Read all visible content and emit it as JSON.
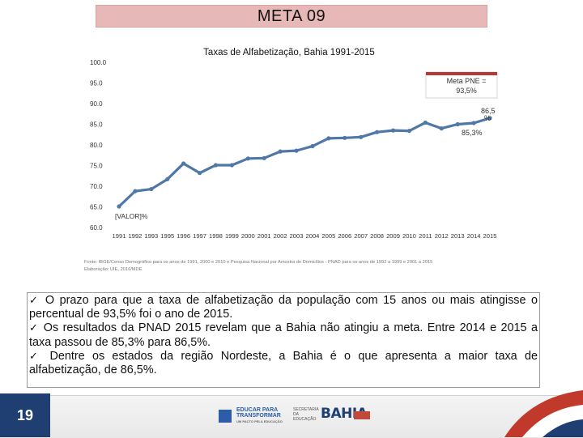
{
  "header": {
    "title": "META 09"
  },
  "chart_data": {
    "type": "line",
    "title": "Taxas de Alfabetização, Bahia 1991-2015",
    "x": [
      "1991",
      "1992",
      "1993",
      "1995",
      "1996",
      "1997",
      "1998",
      "1999",
      "2000",
      "2001",
      "2002",
      "2003",
      "2004",
      "2005",
      "2006",
      "2007",
      "2008",
      "2009",
      "2010",
      "2011",
      "2012",
      "2013",
      "2014",
      "2015"
    ],
    "series": [
      {
        "name": "Bahia",
        "values": [
          65.1,
          68.8,
          69.3,
          71.7,
          75.5,
          73.2,
          75.1,
          75.1,
          76.7,
          76.8,
          78.4,
          78.6,
          79.7,
          81.6,
          81.7,
          81.9,
          83.1,
          83.5,
          83.4,
          85.4,
          84.0,
          85.0,
          85.3,
          86.5
        ],
        "color": "#4f78a6"
      }
    ],
    "ylim": [
      60,
      100
    ],
    "yticks": [
      "100.0",
      "95.0",
      "90.0",
      "85.0",
      "80.0",
      "75.0",
      "70.0",
      "65.0",
      "60.0"
    ],
    "annotations": {
      "first_label": "[VALOR]%",
      "label_2014": "85,3%",
      "label_2015_line1": "86,5",
      "label_2015_line2": "%",
      "meta_line1": "Meta PNE =",
      "meta_line2": "93,5%"
    },
    "source_line1": "Fonte: IBGE/Censo Demográfico para os anos de 1991, 2000 e 2010 e Pesquisa Nacional por Amostra de Domicílios - PNAD para os anos de 1992 a 1999 e 2001 a 2015",
    "source_line2": "Elaboração: UIE, 2016/MDE"
  },
  "bullets": [
    {
      "check": "✓",
      "text": " O prazo para que a taxa de alfabetização da população com 15 anos ou mais atingisse o percentual de 93,5% foi o ano de 2015."
    },
    {
      "check": "✓",
      "text": " Os resultados da PNAD 2015 revelam que a Bahia não atingiu a meta. Entre 2014 e 2015 a taxa passou de 85,3% para 86,5%."
    },
    {
      "check": "✓",
      "text": " Dentre os estados da região Nordeste, a Bahia é o que apresenta a maior taxa de alfabetização, de 86,5%."
    }
  ],
  "footer": {
    "page_number": "19",
    "logo_a_line1": "EDUCAR PARA",
    "logo_a_line2": "TRANSFORMAR",
    "logo_a_sub": "UM PACTO PELA EDUCAÇÃO",
    "logo_b": "SECRETARIA DA EDUCAÇÃO",
    "logo_c": "BAHIA",
    "colors": {
      "navy": "#1f3f73",
      "red": "#c0392b"
    }
  }
}
